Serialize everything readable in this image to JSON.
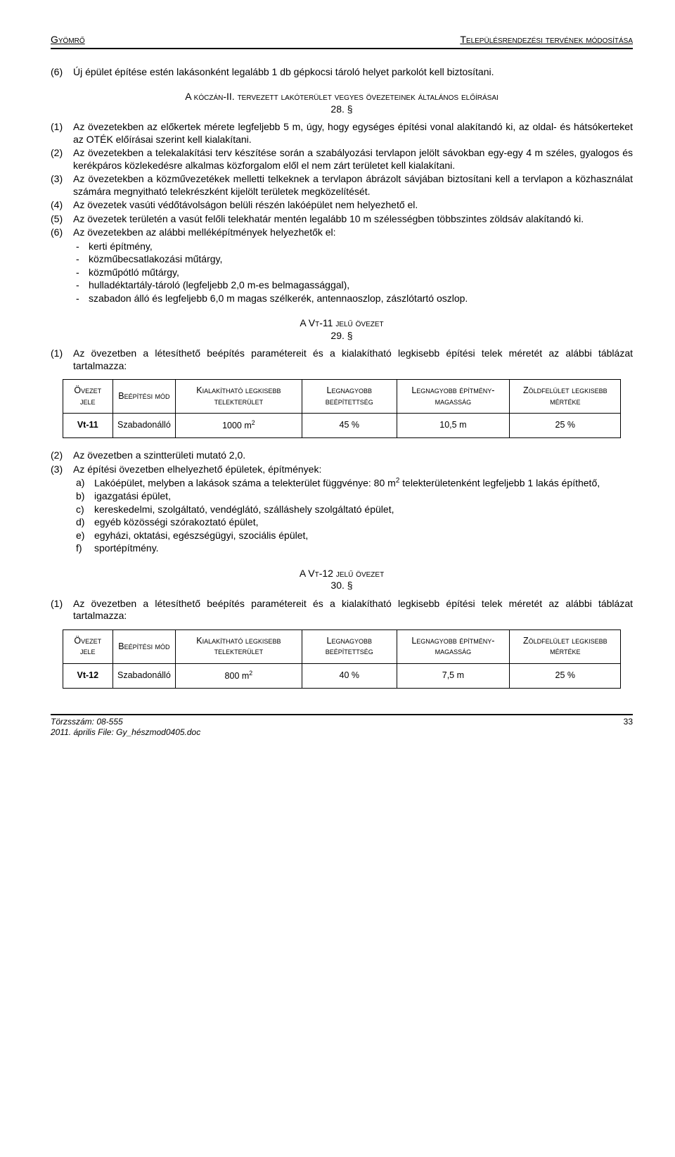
{
  "header": {
    "left": "Gyömrő",
    "right": "Településrendezési tervének módosítása"
  },
  "intro_item": {
    "num": "(6)",
    "text": "Új épület építése estén lakásonként legalább 1 db gépkocsi tároló helyet parkolót kell biztosítani."
  },
  "section28": {
    "title": "A kóczán-II. tervezett lakóterület vegyes övezeteinek általános előírásai",
    "num": "28. §",
    "items": [
      {
        "num": "(1)",
        "text": "Az övezetekben az előkertek mérete legfeljebb 5 m, úgy, hogy egységes építési vonal alakítandó ki, az oldal- és hátsókerteket az OTÉK előírásai szerint kell kialakítani."
      },
      {
        "num": "(2)",
        "text": "Az övezetekben a telekalakítási terv készítése során a szabályozási tervlapon jelölt sávokban egy-egy 4 m széles, gyalogos és kerékpáros közlekedésre alkalmas közforgalom elől el nem zárt területet kell kialakítani."
      },
      {
        "num": "(3)",
        "text": "Az övezetekben a közművezetékek melletti telkeknek a tervlapon ábrázolt sávjában biztosítani kell a tervlapon a közhasználat számára megnyitható telekrészként kijelölt területek megközelítését."
      },
      {
        "num": "(4)",
        "text": "Az övezetek vasúti védőtávolságon belüli részén lakóépület nem helyezhető el."
      },
      {
        "num": "(5)",
        "text": "Az övezetek területén a vasút felőli telekhatár mentén legalább 10 m szélességben többszintes zöldsáv alakítandó ki."
      },
      {
        "num": "(6)",
        "text": "Az övezetekben az alábbi melléképítmények helyezhetők el:"
      }
    ],
    "subs": [
      "kerti építmény,",
      "közműbecsatlakozási műtárgy,",
      "közműpótló műtárgy,",
      "hulladéktartály-tároló (legfeljebb 2,0 m-es belmagassággal),",
      "szabadon álló és legfeljebb 6,0 m magas szélkerék, antennaoszlop, zászlótartó oszlop."
    ]
  },
  "section29": {
    "title": "A Vt-11 jelű övezet",
    "num": "29. §",
    "lead": {
      "num": "(1)",
      "text": "Az övezetben a létesíthető beépítés paramétereit és a kialakítható legkisebb építési telek méretét az alábbi táblázat tartalmazza:"
    },
    "headers": [
      "Övezet jele",
      "Beépítési mód",
      "Kialakítható legkisebb telekterület",
      "Legnagyobb beépítettség",
      "Legnagyobb építmény-magasság",
      "Zöldfelület legkisebb mértéke"
    ],
    "row": [
      "Vt-11",
      "Szabadonálló",
      "1000 m²",
      "45 %",
      "10,5 m",
      "25 %"
    ],
    "items": [
      {
        "num": "(2)",
        "text": "Az övezetben a szintterületi mutató 2,0."
      },
      {
        "num": "(3)",
        "text": "Az építési övezetben elhelyezhető épületek, építmények:"
      }
    ],
    "letters": [
      {
        "l": "a)",
        "t": "Lakóépület, melyben a lakások száma a telekterület függvénye: 80 m² telekterületenként legfeljebb 1 lakás építhető,"
      },
      {
        "l": "b)",
        "t": "igazgatási épület,"
      },
      {
        "l": "c)",
        "t": "kereskedelmi, szolgáltató, vendéglátó, szálláshely szolgáltató épület,"
      },
      {
        "l": "d)",
        "t": "egyéb közösségi szórakoztató épület,"
      },
      {
        "l": "e)",
        "t": "egyházi, oktatási, egészségügyi, szociális épület,"
      },
      {
        "l": "f)",
        "t": "sportépítmény."
      }
    ]
  },
  "section30": {
    "title": "A Vt-12 jelű övezet",
    "num": "30. §",
    "lead": {
      "num": "(1)",
      "text": "Az övezetben a létesíthető beépítés paramétereit és a kialakítható legkisebb építési telek méretét az alábbi táblázat tartalmazza:"
    },
    "headers": [
      "Övezet jele",
      "Beépítési mód",
      "Kialakítható legkisebb telekterület",
      "Legnagyobb beépítettség",
      "Legnagyobb építmény-magasság",
      "Zöldfelület legkisebb mértéke"
    ],
    "row": [
      "Vt-12",
      "Szabadonálló",
      "800 m²",
      "40 %",
      "7,5 m",
      "25 %"
    ]
  },
  "footer": {
    "line1": "Törzsszám: 08-555",
    "line2": "2011. április  File: Gy_hészmod0405.doc",
    "page": "33"
  }
}
